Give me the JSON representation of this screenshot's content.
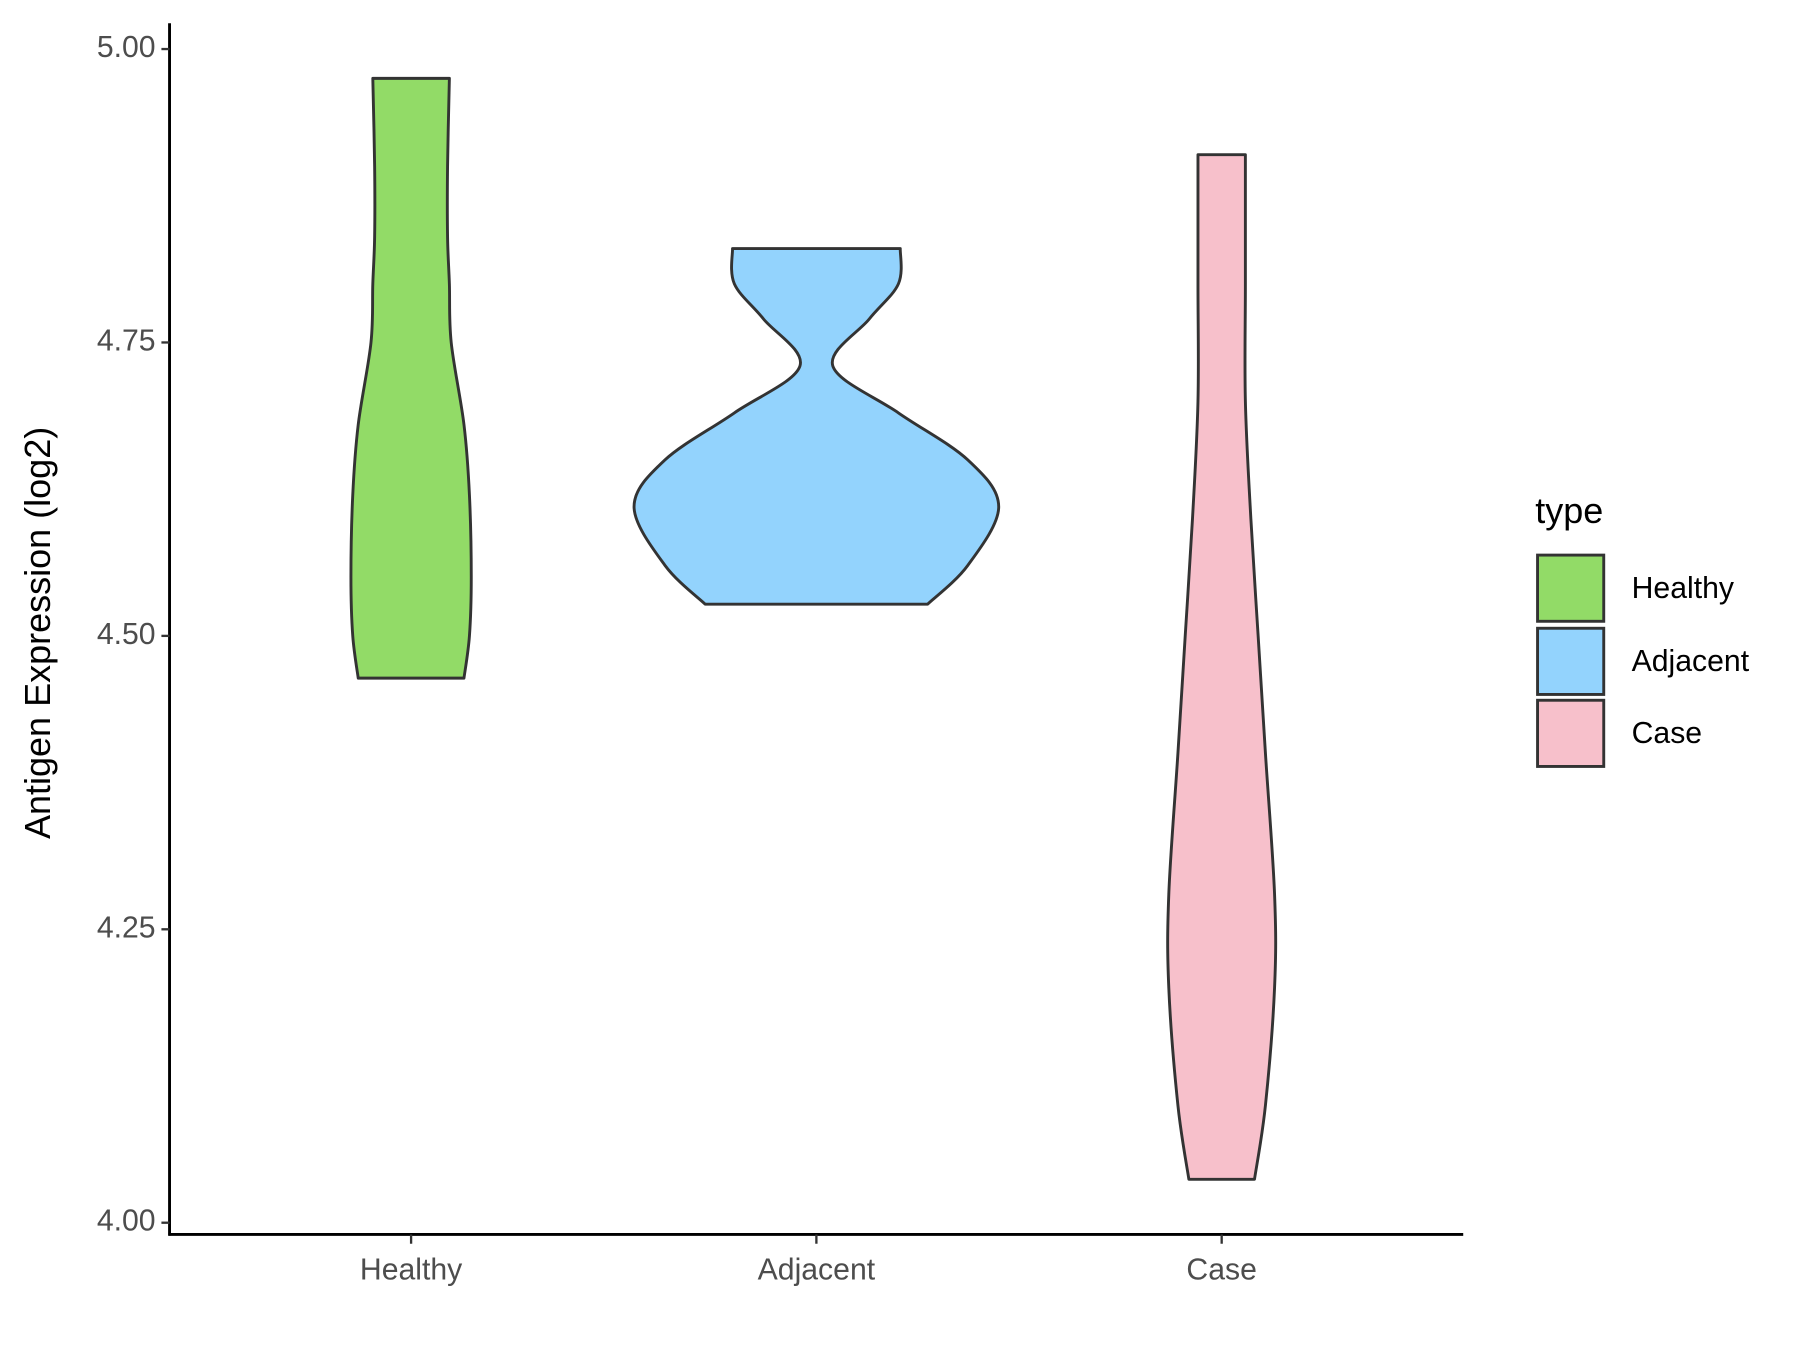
{
  "chart_data": {
    "type": "violin",
    "y_label": "Antigen Expression (log2)",
    "categories": [
      "Healthy",
      "Adjacent",
      "Case"
    ],
    "series": [
      {
        "name": "Healthy",
        "color": "#92db67",
        "y": [
          4.464,
          4.5,
          4.55,
          4.62,
          4.68,
          4.75,
          4.8,
          4.84,
          4.9,
          4.975
        ],
        "density": [
          0.29,
          0.32,
          0.33,
          0.32,
          0.29,
          0.22,
          0.21,
          0.2,
          0.2,
          0.21
        ]
      },
      {
        "name": "Adjacent",
        "color": "#93d3fd",
        "y": [
          4.527,
          4.56,
          4.61,
          4.65,
          4.69,
          4.73,
          4.77,
          4.8,
          4.83
        ],
        "density": [
          0.61,
          0.83,
          1,
          0.83,
          0.45,
          0.09,
          0.29,
          0.45,
          0.46
        ]
      },
      {
        "name": "Case",
        "color": "#f7c0cb",
        "y": [
          4.037,
          4.1,
          4.2,
          4.28,
          4.4,
          4.5,
          4.6,
          4.7,
          4.8,
          4.91
        ],
        "density": [
          0.18,
          0.24,
          0.29,
          0.29,
          0.24,
          0.2,
          0.16,
          0.13,
          0.13,
          0.13
        ]
      }
    ],
    "ylim": [
      3.99,
      5.022
    ],
    "yticks": [
      {
        "value": 4,
        "label": "4.00"
      },
      4.25,
      {
        "value": 4.5,
        "label": "4.50"
      },
      4.75,
      {
        "value": 5,
        "label": "5.00"
      }
    ],
    "legend_title": "type",
    "legend": "right"
  }
}
